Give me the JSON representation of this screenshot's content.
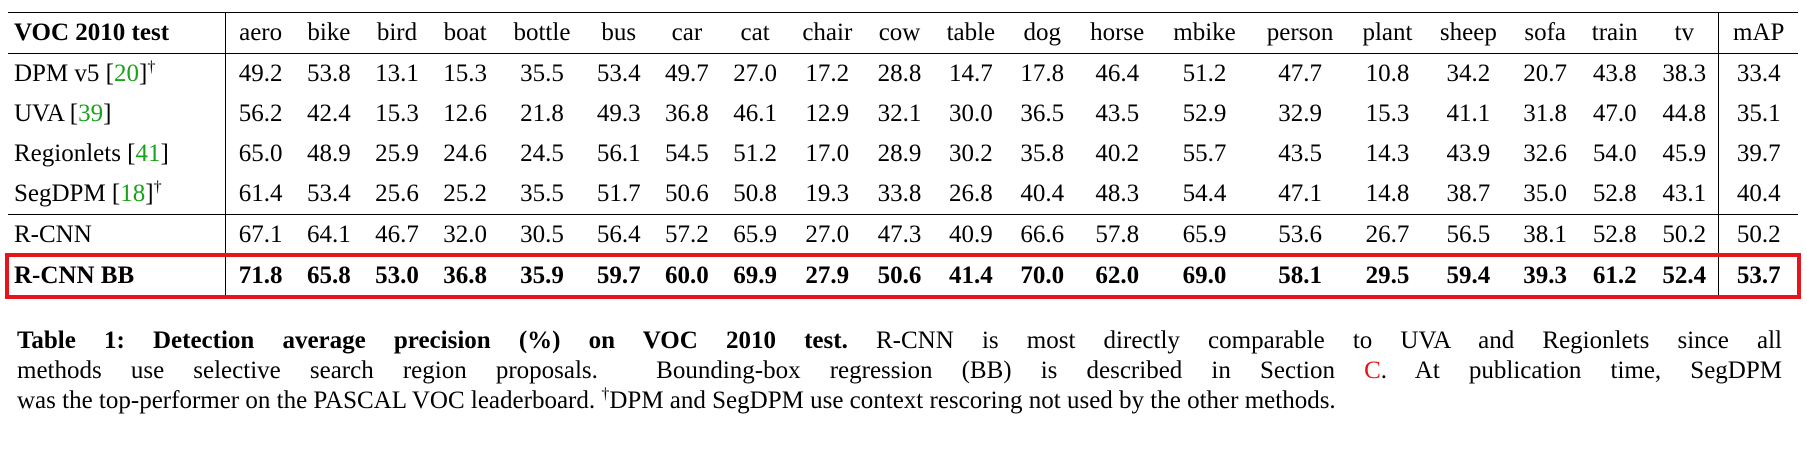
{
  "table": {
    "header": [
      "VOC 2010 test",
      "aero",
      "bike",
      "bird",
      "boat",
      "bottle",
      "bus",
      "car",
      "cat",
      "chair",
      "cow",
      "table",
      "dog",
      "horse",
      "mbike",
      "person",
      "plant",
      "sheep",
      "sofa",
      "train",
      "tv",
      "mAP"
    ],
    "rows": [
      {
        "label": [
          {
            "t": "DPM v5 ["
          },
          {
            "t": "20",
            "color": "#1aa31a"
          },
          {
            "t": "]"
          },
          {
            "t": "†",
            "sup": true
          }
        ],
        "values": [
          "49.2",
          "53.8",
          "13.1",
          "15.3",
          "35.5",
          "53.4",
          "49.7",
          "27.0",
          "17.2",
          "28.8",
          "14.7",
          "17.8",
          "46.4",
          "51.2",
          "47.7",
          "10.8",
          "34.2",
          "20.7",
          "43.8",
          "38.3",
          "33.4"
        ]
      },
      {
        "label": [
          {
            "t": "UVA ["
          },
          {
            "t": "39",
            "color": "#1aa31a"
          },
          {
            "t": "]"
          }
        ],
        "values": [
          "56.2",
          "42.4",
          "15.3",
          "12.6",
          "21.8",
          "49.3",
          "36.8",
          "46.1",
          "12.9",
          "32.1",
          "30.0",
          "36.5",
          "43.5",
          "52.9",
          "32.9",
          "15.3",
          "41.1",
          "31.8",
          "47.0",
          "44.8",
          "35.1"
        ]
      },
      {
        "label": [
          {
            "t": "Regionlets ["
          },
          {
            "t": "41",
            "color": "#1aa31a"
          },
          {
            "t": "]"
          }
        ],
        "values": [
          "65.0",
          "48.9",
          "25.9",
          "24.6",
          "24.5",
          "56.1",
          "54.5",
          "51.2",
          "17.0",
          "28.9",
          "30.2",
          "35.8",
          "40.2",
          "55.7",
          "43.5",
          "14.3",
          "43.9",
          "32.6",
          "54.0",
          "45.9",
          "39.7"
        ]
      },
      {
        "label": [
          {
            "t": "SegDPM ["
          },
          {
            "t": "18",
            "color": "#1aa31a"
          },
          {
            "t": "]"
          },
          {
            "t": "†",
            "sup": true
          }
        ],
        "values": [
          "61.4",
          "53.4",
          "25.6",
          "25.2",
          "35.5",
          "51.7",
          "50.6",
          "50.8",
          "19.3",
          "33.8",
          "26.8",
          "40.4",
          "48.3",
          "54.4",
          "47.1",
          "14.8",
          "38.7",
          "35.0",
          "52.8",
          "43.1",
          "40.4"
        ]
      },
      {
        "label": [
          {
            "t": "R-CNN"
          }
        ],
        "rule_above": true,
        "values": [
          "67.1",
          "64.1",
          "46.7",
          "32.0",
          "30.5",
          "56.4",
          "57.2",
          "65.9",
          "27.0",
          "47.3",
          "40.9",
          "66.6",
          "57.8",
          "65.9",
          "53.6",
          "26.7",
          "56.5",
          "38.1",
          "52.8",
          "50.2",
          "50.2"
        ]
      },
      {
        "label": [
          {
            "t": "R-CNN BB"
          }
        ],
        "rule_above": true,
        "bold": true,
        "highlight": "#e8141b",
        "values": [
          "71.8",
          "65.8",
          "53.0",
          "36.8",
          "35.9",
          "59.7",
          "60.0",
          "69.9",
          "27.9",
          "50.6",
          "41.4",
          "70.0",
          "62.0",
          "69.0",
          "58.1",
          "29.5",
          "59.4",
          "39.3",
          "61.2",
          "52.4",
          "53.7"
        ]
      }
    ]
  },
  "caption": {
    "lines": [
      [
        {
          "t": "Table 1: Detection average precision (%) on VOC 2010 test.",
          "bold": true
        },
        {
          "t": " R-CNN is most directly comparable to UVA and Regionlets since all"
        }
      ],
      [
        {
          "t": "methods use selective search region proposals.  Bounding-box regression (BB) is described in Section "
        },
        {
          "t": "C",
          "color": "#e8141b"
        },
        {
          "t": ". At publication time, SegDPM"
        }
      ],
      [
        {
          "t": "was the top-performer on the PASCAL VOC leaderboard. "
        },
        {
          "t": "†",
          "sup": true
        },
        {
          "t": "DPM and SegDPM use context rescoring not used by the other methods."
        }
      ]
    ]
  }
}
